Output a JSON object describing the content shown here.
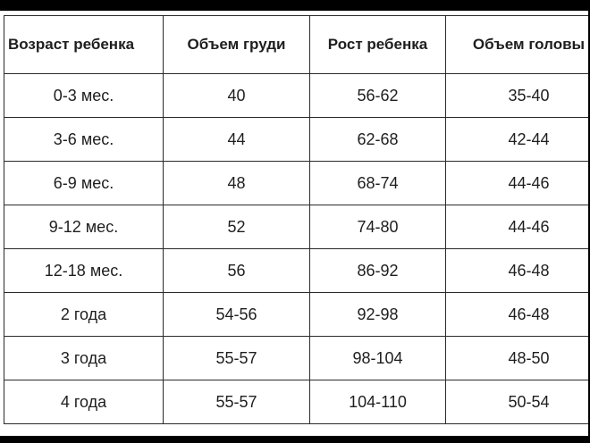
{
  "table": {
    "headers": [
      "Возраст ребенка",
      "Объем груди",
      "Рост ребенка",
      "Объем головы"
    ],
    "rows": [
      [
        "0-3 мес.",
        "40",
        "56-62",
        "35-40"
      ],
      [
        "3-6 мес.",
        "44",
        "62-68",
        "42-44"
      ],
      [
        "6-9 мес.",
        "48",
        "68-74",
        "44-46"
      ],
      [
        "9-12 мес.",
        "52",
        "74-80",
        "44-46"
      ],
      [
        "12-18 мес.",
        "56",
        "86-92",
        "46-48"
      ],
      [
        "2 года",
        "54-56",
        "92-98",
        "46-48"
      ],
      [
        "3 года",
        "55-57",
        "98-104",
        "48-50"
      ],
      [
        "4 года",
        "55-57",
        "104-110",
        "50-54"
      ]
    ]
  }
}
